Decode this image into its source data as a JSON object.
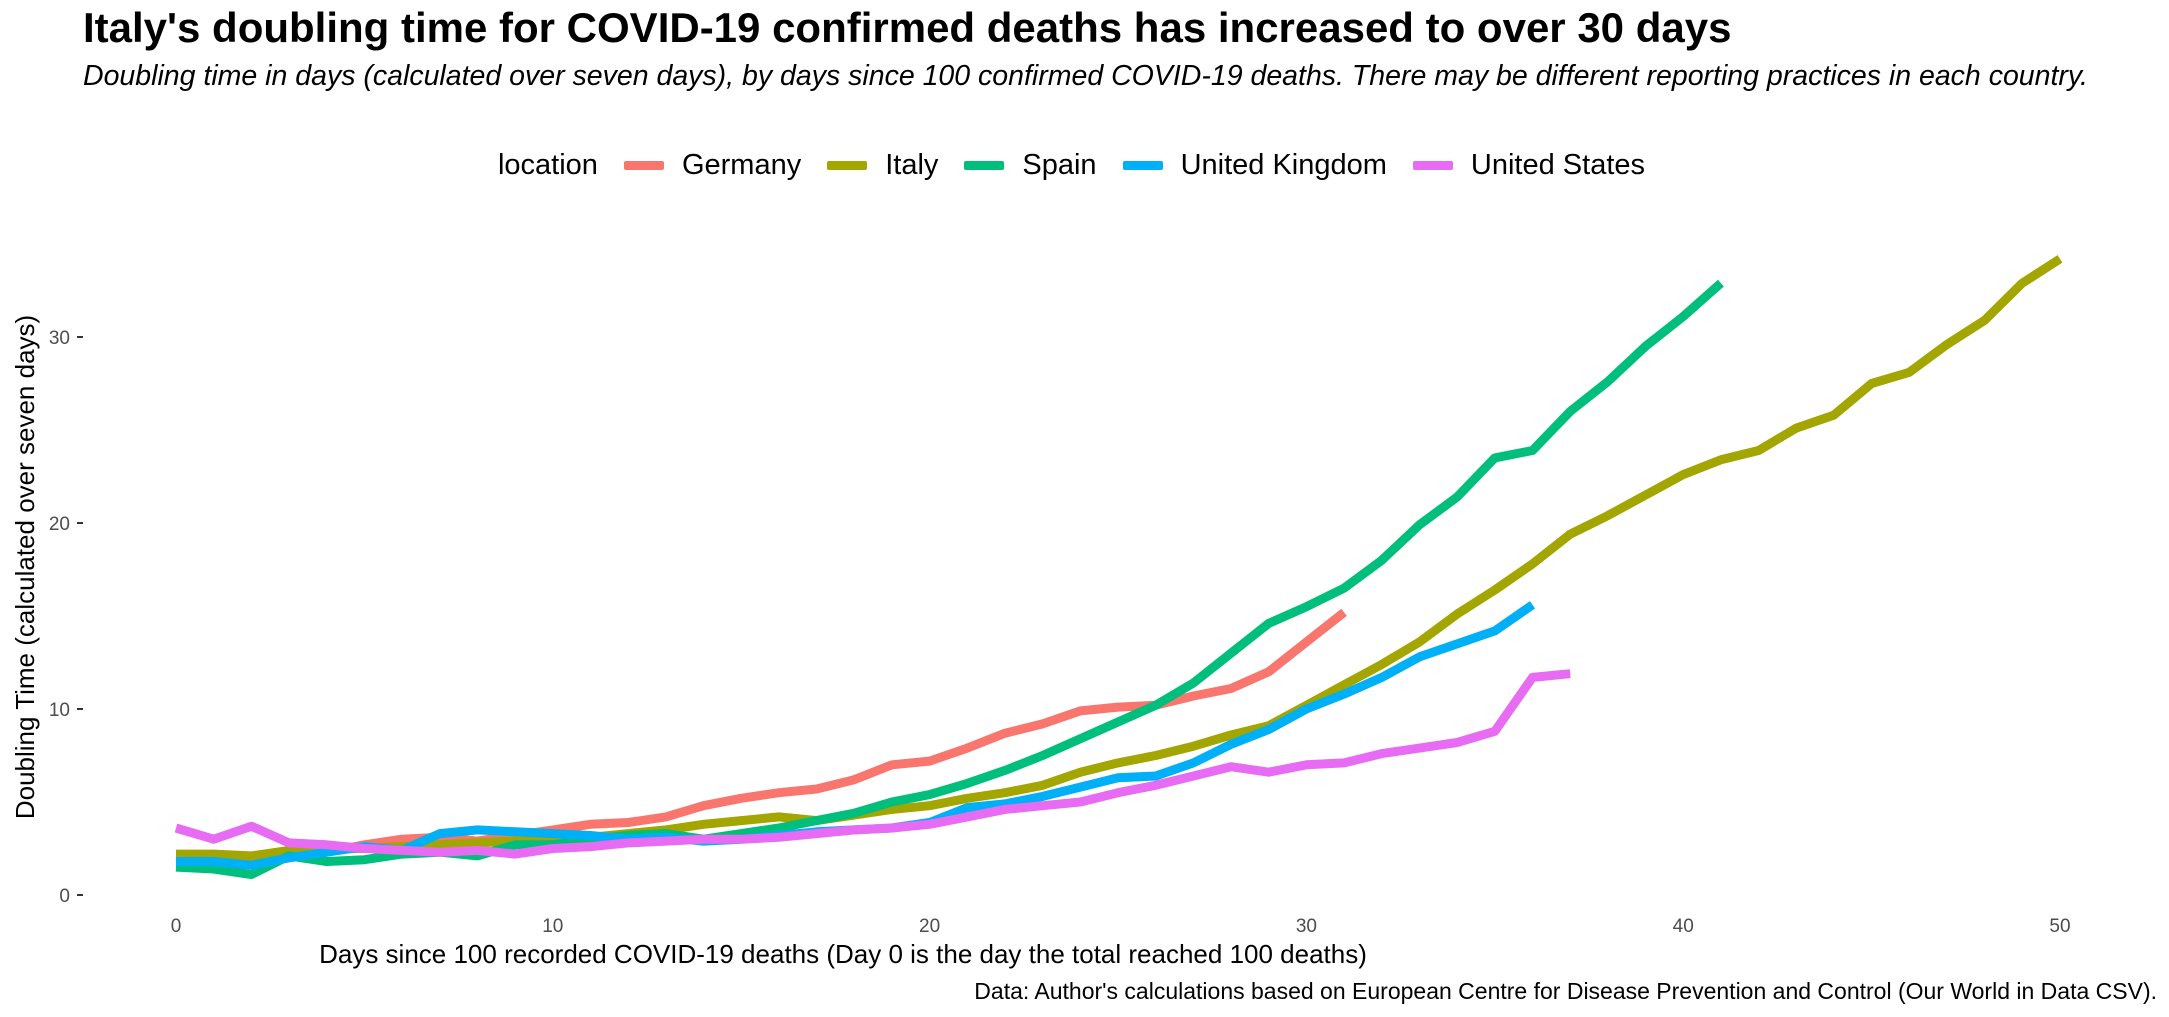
{
  "chart_data": {
    "type": "line",
    "title": "Italy's doubling time for COVID-19 confirmed deaths has increased to over 30 days",
    "subtitle": "Doubling time in days (calculated over seven days), by days since 100 confirmed COVID-19 deaths. There may be different reporting practices in each country.",
    "xlabel": "Days since 100 recorded COVID-19 deaths (Day 0 is the day the total reached 100 deaths)",
    "ylabel": "Doubling Time (calculated over seven days)",
    "caption": "Data: Author's calculations based on European Centre for Disease Prevention and Control (Our World in Data CSV).",
    "legend_title": "location",
    "legend_position": "top",
    "grid": false,
    "xlim": [
      0,
      50
    ],
    "ylim": [
      0,
      35
    ],
    "x_ticks": [
      0,
      10,
      20,
      30,
      40,
      50
    ],
    "y_ticks": [
      0,
      10,
      20,
      30
    ],
    "series": [
      {
        "name": "Germany",
        "color": "#F8766D",
        "x": [
          0,
          1,
          2,
          3,
          4,
          5,
          6,
          7,
          8,
          9,
          10,
          11,
          12,
          13,
          14,
          15,
          16,
          17,
          18,
          19,
          20,
          21,
          22,
          23,
          24,
          25,
          26,
          27,
          28,
          29,
          30,
          31
        ],
        "y": [
          1.8,
          1.9,
          1.7,
          2.0,
          2.3,
          2.7,
          3.0,
          3.1,
          2.9,
          3.2,
          3.5,
          3.8,
          3.9,
          4.2,
          4.8,
          5.2,
          5.5,
          5.7,
          6.2,
          7.0,
          7.2,
          7.9,
          8.7,
          9.2,
          9.9,
          10.1,
          10.2,
          10.7,
          11.1,
          12.0,
          13.6,
          15.2
        ]
      },
      {
        "name": "Italy",
        "color": "#A3A500",
        "x": [
          0,
          1,
          2,
          3,
          4,
          5,
          6,
          7,
          8,
          9,
          10,
          11,
          12,
          13,
          14,
          15,
          16,
          17,
          18,
          19,
          20,
          21,
          22,
          23,
          24,
          25,
          26,
          27,
          28,
          29,
          30,
          31,
          32,
          33,
          34,
          35,
          36,
          37,
          38,
          39,
          40,
          41,
          42,
          43,
          44,
          45,
          46,
          47,
          48,
          49,
          50
        ],
        "y": [
          2.2,
          2.2,
          2.1,
          2.4,
          2.5,
          2.5,
          2.6,
          2.7,
          2.8,
          2.9,
          3.0,
          3.1,
          3.3,
          3.5,
          3.8,
          4.0,
          4.2,
          4.0,
          4.3,
          4.6,
          4.8,
          5.2,
          5.5,
          5.9,
          6.6,
          7.1,
          7.5,
          8.0,
          8.6,
          9.1,
          10.2,
          11.3,
          12.4,
          13.6,
          15.1,
          16.4,
          17.8,
          19.4,
          20.4,
          21.5,
          22.6,
          23.4,
          23.9,
          25.1,
          25.8,
          27.5,
          28.1,
          29.6,
          30.9,
          32.9,
          34.2
        ]
      },
      {
        "name": "Spain",
        "color": "#00BF7D",
        "x": [
          0,
          1,
          2,
          3,
          4,
          5,
          6,
          7,
          8,
          9,
          10,
          11,
          12,
          13,
          14,
          15,
          16,
          17,
          18,
          19,
          20,
          21,
          22,
          23,
          24,
          25,
          26,
          27,
          28,
          29,
          30,
          31,
          32,
          33,
          34,
          35,
          36,
          37,
          38,
          39,
          40,
          41
        ],
        "y": [
          1.5,
          1.4,
          1.1,
          2.1,
          1.8,
          1.9,
          2.2,
          2.3,
          2.1,
          2.7,
          2.7,
          3.0,
          3.2,
          3.3,
          3.0,
          3.3,
          3.6,
          4.0,
          4.4,
          5.0,
          5.4,
          6.0,
          6.7,
          7.5,
          8.4,
          9.3,
          10.2,
          11.4,
          13.0,
          14.6,
          15.5,
          16.5,
          18.0,
          19.9,
          21.4,
          23.5,
          23.9,
          26.0,
          27.6,
          29.5,
          31.1,
          32.9
        ]
      },
      {
        "name": "United Kingdom",
        "color": "#00B0F6",
        "x": [
          0,
          1,
          2,
          3,
          4,
          5,
          6,
          7,
          8,
          9,
          10,
          11,
          12,
          13,
          14,
          15,
          16,
          17,
          18,
          19,
          20,
          21,
          22,
          23,
          24,
          25,
          26,
          27,
          28,
          29,
          30,
          31,
          32,
          33,
          34,
          35,
          36
        ],
        "y": [
          1.8,
          1.8,
          1.6,
          2.0,
          2.3,
          2.6,
          2.4,
          3.3,
          3.5,
          3.4,
          3.3,
          3.2,
          3.0,
          3.1,
          2.9,
          3.0,
          3.2,
          3.4,
          3.5,
          3.6,
          3.9,
          4.7,
          4.9,
          5.3,
          5.8,
          6.3,
          6.4,
          7.1,
          8.1,
          8.9,
          10.0,
          10.8,
          11.7,
          12.8,
          13.5,
          14.2,
          15.6
        ]
      },
      {
        "name": "United States",
        "color": "#E76BF3",
        "x": [
          0,
          1,
          2,
          3,
          4,
          5,
          6,
          7,
          8,
          9,
          10,
          11,
          12,
          13,
          14,
          15,
          16,
          17,
          18,
          19,
          20,
          21,
          22,
          23,
          24,
          25,
          26,
          27,
          28,
          29,
          30,
          31,
          32,
          33,
          34,
          35,
          36,
          37
        ],
        "y": [
          3.6,
          3.0,
          3.7,
          2.8,
          2.7,
          2.5,
          2.4,
          2.3,
          2.4,
          2.2,
          2.5,
          2.6,
          2.8,
          2.9,
          3.0,
          3.0,
          3.1,
          3.3,
          3.5,
          3.6,
          3.8,
          4.2,
          4.6,
          4.8,
          5.0,
          5.5,
          5.9,
          6.4,
          6.9,
          6.6,
          7.0,
          7.1,
          7.6,
          7.9,
          8.2,
          8.8,
          11.7,
          11.9
        ]
      }
    ]
  }
}
